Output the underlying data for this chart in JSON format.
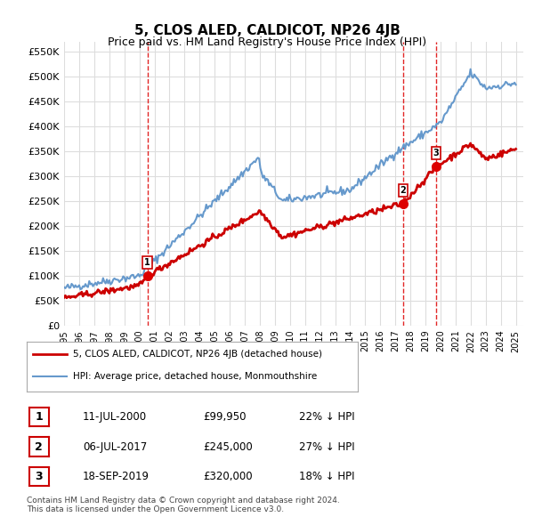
{
  "title": "5, CLOS ALED, CALDICOT, NP26 4JB",
  "subtitle": "Price paid vs. HM Land Registry's House Price Index (HPI)",
  "ylabel_ticks": [
    "£0",
    "£50K",
    "£100K",
    "£150K",
    "£200K",
    "£250K",
    "£300K",
    "£350K",
    "£400K",
    "£450K",
    "£500K",
    "£550K"
  ],
  "ytick_values": [
    0,
    50000,
    100000,
    150000,
    200000,
    250000,
    300000,
    350000,
    400000,
    450000,
    500000,
    550000
  ],
  "ylim": [
    0,
    570000
  ],
  "xlim_start": 1995.0,
  "xlim_end": 2025.5,
  "sale_points": [
    {
      "label": "1",
      "date_x": 2000.53,
      "price": 99950
    },
    {
      "label": "2",
      "date_x": 2017.51,
      "price": 245000
    },
    {
      "label": "3",
      "date_x": 2019.71,
      "price": 320000
    }
  ],
  "legend_entries": [
    {
      "label": "5, CLOS ALED, CALDICOT, NP26 4JB (detached house)",
      "color": "#cc0000",
      "lw": 2
    },
    {
      "label": "HPI: Average price, detached house, Monmouthshire",
      "color": "#6699cc",
      "lw": 1.5
    }
  ],
  "table_rows": [
    {
      "num": "1",
      "date": "11-JUL-2000",
      "price": "£99,950",
      "pct": "22% ↓ HPI"
    },
    {
      "num": "2",
      "date": "06-JUL-2017",
      "price": "£245,000",
      "pct": "27% ↓ HPI"
    },
    {
      "num": "3",
      "date": "18-SEP-2019",
      "price": "£320,000",
      "pct": "18% ↓ HPI"
    }
  ],
  "footnote": "Contains HM Land Registry data © Crown copyright and database right 2024.\nThis data is licensed under the Open Government Licence v3.0.",
  "bg_color": "#ffffff",
  "plot_bg_color": "#ffffff",
  "grid_color": "#dddddd",
  "vline_color": "#dd0000",
  "xtick_years": [
    1995,
    1996,
    1997,
    1998,
    1999,
    2000,
    2001,
    2002,
    2003,
    2004,
    2005,
    2006,
    2007,
    2008,
    2009,
    2010,
    2011,
    2012,
    2013,
    2014,
    2015,
    2016,
    2017,
    2018,
    2019,
    2020,
    2021,
    2022,
    2023,
    2024,
    2025
  ]
}
